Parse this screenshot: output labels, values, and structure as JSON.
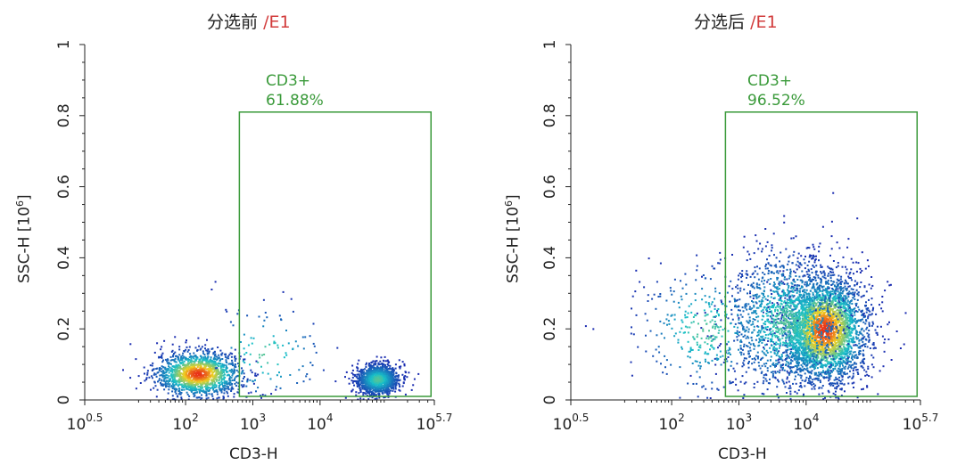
{
  "chart_data": [
    {
      "type": "scatter",
      "title_main": "分选前",
      "title_sep": "/",
      "title_tag": "E1",
      "xlabel": "CD3-H",
      "ylabel": "SSC-H [10",
      "ylabel_exp": "6",
      "ylabel_end": "]",
      "x_scale": "log",
      "xlim": [
        3.1623,
        501187
      ],
      "ylim": [
        0,
        1
      ],
      "x_ticks": [
        {
          "value": 3.1623,
          "base": "10",
          "exp": "0.5"
        },
        {
          "value": 100,
          "base": "10",
          "exp": "2"
        },
        {
          "value": 1000,
          "base": "10",
          "exp": "3"
        },
        {
          "value": 10000,
          "base": "10",
          "exp": "4"
        },
        {
          "value": 501187,
          "base": "10",
          "exp": "5.7"
        }
      ],
      "y_ticks": [
        {
          "value": 0,
          "label": "0"
        },
        {
          "value": 0.2,
          "label": "0.2"
        },
        {
          "value": 0.4,
          "label": "0.4"
        },
        {
          "value": 0.6,
          "label": "0.6"
        },
        {
          "value": 0.8,
          "label": "0.8"
        },
        {
          "value": 1,
          "label": "1"
        }
      ],
      "gate": {
        "name": "CD3+",
        "percent": "61.88%",
        "x_range": [
          631,
          447000
        ],
        "y_range": [
          0.01,
          0.81
        ],
        "color": "#3a9a3a"
      },
      "populations": [
        {
          "x_center": 150,
          "x_spread_log": 0.32,
          "y_center": 0.075,
          "y_spread": 0.032,
          "count": 1500
        },
        {
          "x_center": 70000,
          "x_spread_log": 0.16,
          "y_center": 0.06,
          "y_spread": 0.022,
          "count": 1300
        },
        {
          "x_center": 1500,
          "x_spread_log": 0.45,
          "y_center": 0.13,
          "y_spread": 0.07,
          "count": 120
        }
      ]
    },
    {
      "type": "scatter",
      "title_main": "分选后",
      "title_sep": "/",
      "title_tag": "E1",
      "xlabel": "CD3-H",
      "ylabel": "SSC-H [10",
      "ylabel_exp": "6",
      "ylabel_end": "]",
      "x_scale": "log",
      "xlim": [
        3.1623,
        501187
      ],
      "ylim": [
        0,
        1
      ],
      "x_ticks": [
        {
          "value": 3.1623,
          "base": "10",
          "exp": "0.5"
        },
        {
          "value": 100,
          "base": "10",
          "exp": "2"
        },
        {
          "value": 1000,
          "base": "10",
          "exp": "3"
        },
        {
          "value": 10000,
          "base": "10",
          "exp": "4"
        },
        {
          "value": 501187,
          "base": "10",
          "exp": "5.7"
        }
      ],
      "y_ticks": [
        {
          "value": 0,
          "label": "0"
        },
        {
          "value": 0.2,
          "label": "0.2"
        },
        {
          "value": 0.4,
          "label": "0.4"
        },
        {
          "value": 0.6,
          "label": "0.6"
        },
        {
          "value": 0.8,
          "label": "0.8"
        },
        {
          "value": 1,
          "label": "1"
        }
      ],
      "gate": {
        "name": "CD3+",
        "percent": "96.52%",
        "x_range": [
          631,
          447000
        ],
        "y_range": [
          0.01,
          0.81
        ],
        "color": "#3a9a3a"
      },
      "populations": [
        {
          "x_center": 18000,
          "x_spread_log": 0.32,
          "y_center": 0.2,
          "y_spread": 0.075,
          "count": 3200
        },
        {
          "x_center": 5000,
          "x_spread_log": 0.45,
          "y_center": 0.22,
          "y_spread": 0.1,
          "count": 1400
        },
        {
          "x_center": 300,
          "x_spread_log": 0.5,
          "y_center": 0.2,
          "y_spread": 0.09,
          "count": 350
        }
      ]
    }
  ],
  "colors": {
    "density_low": "#1a2ab0",
    "density_mid": "#18c0c8",
    "density_high": "#f0d020",
    "density_peak": "#e83018",
    "axis": "#222222"
  }
}
